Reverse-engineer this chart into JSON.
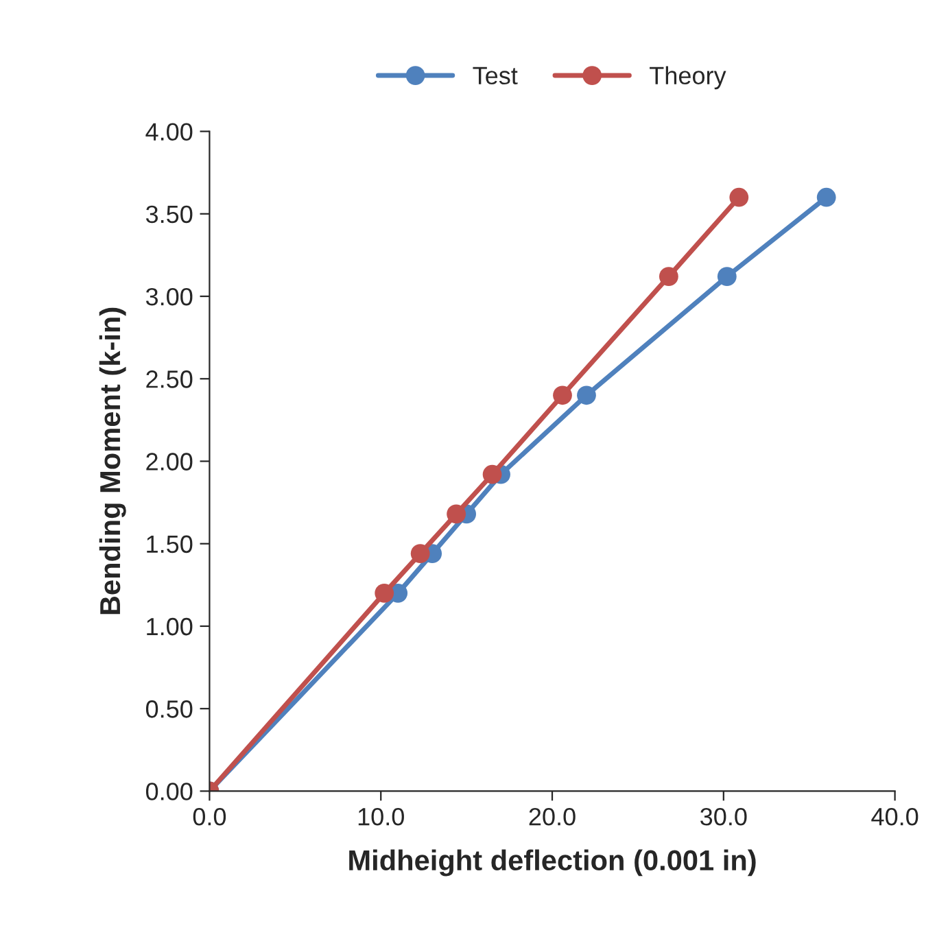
{
  "chart_data": {
    "type": "line",
    "xlabel": "Midheight deflection (0.001 in)",
    "ylabel": "Bending Moment (k-in)",
    "series": [
      {
        "name": "Test",
        "color": "#4f81bd",
        "x": [
          0,
          11.0,
          13.0,
          15.0,
          17.0,
          22.0,
          30.2,
          36.0
        ],
        "values": [
          0,
          1.2,
          1.44,
          1.68,
          1.92,
          2.4,
          3.12,
          3.6
        ]
      },
      {
        "name": "Theory",
        "color": "#c0504d",
        "x": [
          0,
          10.2,
          12.3,
          14.4,
          16.5,
          20.6,
          26.8,
          30.9
        ],
        "values": [
          0,
          1.2,
          1.44,
          1.68,
          1.92,
          2.4,
          3.12,
          3.6
        ]
      }
    ],
    "xlim": [
      0,
      40
    ],
    "xticks": [
      {
        "value": 0,
        "label": "0.0"
      },
      {
        "value": 10,
        "label": "10.0"
      },
      {
        "value": 20,
        "label": "20.0"
      },
      {
        "value": 30,
        "label": "30.0"
      },
      {
        "value": 40,
        "label": "40.0"
      }
    ],
    "ylim": [
      0,
      4
    ],
    "yticks": [
      {
        "value": 0,
        "label": "0.00"
      },
      {
        "value": 0.5,
        "label": "0.50"
      },
      {
        "value": 1,
        "label": "1.00"
      },
      {
        "value": 1.5,
        "label": "1.50"
      },
      {
        "value": 2,
        "label": "2.00"
      },
      {
        "value": 2.5,
        "label": "2.50"
      },
      {
        "value": 3,
        "label": "3.00"
      },
      {
        "value": 3.5,
        "label": "3.50"
      },
      {
        "value": 4,
        "label": "4.00"
      }
    ],
    "grid": false,
    "legend": "top",
    "marker": "circle",
    "line_style": "solid"
  }
}
